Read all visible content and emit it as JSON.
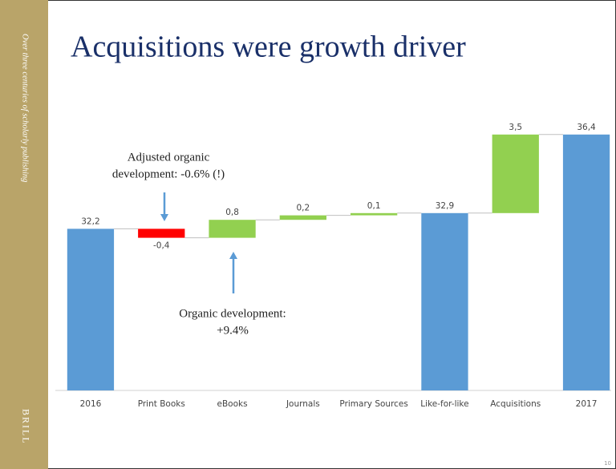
{
  "chart_data": {
    "type": "waterfall",
    "title": "Acquisitions were growth driver",
    "categories": [
      "2016",
      "Print Books",
      "eBooks",
      "Journals",
      "Primary Sources",
      "Like-for-like",
      "Acquisitions",
      "2017"
    ],
    "values": [
      32.2,
      -0.4,
      0.8,
      0.2,
      0.1,
      32.9,
      3.5,
      36.4
    ],
    "value_labels": [
      "32,2",
      "-0,4",
      "0,8",
      "0,2",
      "0,1",
      "32,9",
      "3,5",
      "36,4"
    ],
    "measure": [
      "absolute",
      "relative",
      "relative",
      "relative",
      "relative",
      "absolute",
      "relative",
      "absolute"
    ],
    "colors": {
      "absolute": "#5b9bd5",
      "increase": "#92d050",
      "decrease": "#ff0000"
    },
    "ylim": [
      25,
      38
    ],
    "annotations": [
      {
        "lines": [
          "Adjusted organic",
          "development: -0.6% (!)"
        ],
        "arrow": "down"
      },
      {
        "lines": [
          "Organic development:",
          "+9.4%"
        ],
        "arrow": "up"
      }
    ]
  },
  "sidebar": {
    "tagline": "Over three centuries of scholarly publishing",
    "brand": "BRILL"
  },
  "slide_number": "10"
}
